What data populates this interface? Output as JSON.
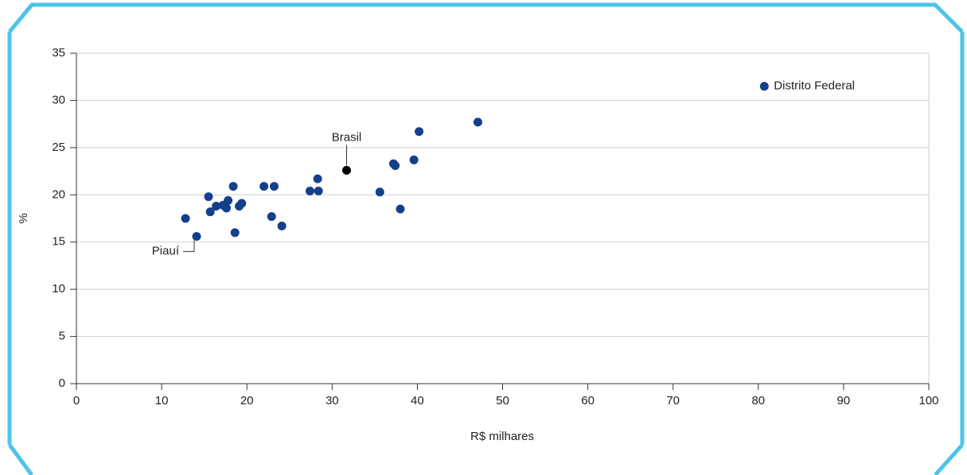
{
  "chart_data": {
    "type": "scatter",
    "x_label": "R$ milhares",
    "y_label": "%",
    "x": [
      12.8,
      14.1,
      15.5,
      15.7,
      16.4,
      17.2,
      17.6,
      17.8,
      18.4,
      18.6,
      19.1,
      19.4,
      22.0,
      22.9,
      23.2,
      24.1,
      27.4,
      28.3,
      28.4,
      31.7,
      35.6,
      37.2,
      37.4,
      38.0,
      39.6,
      40.2,
      47.1,
      80.7
    ],
    "values": [
      17.5,
      15.6,
      19.8,
      18.2,
      18.8,
      18.9,
      18.6,
      19.4,
      20.9,
      16.0,
      18.8,
      19.1,
      20.9,
      17.7,
      20.9,
      16.7,
      20.4,
      21.7,
      20.4,
      22.6,
      20.3,
      23.3,
      23.1,
      18.5,
      23.7,
      26.7,
      27.7,
      31.5
    ],
    "point_labels": [
      null,
      "Piauí",
      null,
      null,
      null,
      null,
      null,
      null,
      null,
      null,
      null,
      null,
      null,
      null,
      null,
      null,
      null,
      null,
      null,
      "Brasil",
      null,
      null,
      null,
      null,
      null,
      null,
      null,
      "Distrito Federal"
    ],
    "colors": [
      "#143f8c",
      "#143f8c",
      "#143f8c",
      "#143f8c",
      "#143f8c",
      "#143f8c",
      "#143f8c",
      "#143f8c",
      "#143f8c",
      "#143f8c",
      "#143f8c",
      "#143f8c",
      "#143f8c",
      "#143f8c",
      "#143f8c",
      "#143f8c",
      "#143f8c",
      "#143f8c",
      "#143f8c",
      "#000000",
      "#143f8c",
      "#143f8c",
      "#143f8c",
      "#143f8c",
      "#143f8c",
      "#143f8c",
      "#143f8c",
      "#143f8c"
    ],
    "xlim": [
      0,
      100
    ],
    "ylim": [
      0,
      35
    ],
    "xticks": [
      0,
      10,
      20,
      30,
      40,
      50,
      60,
      70,
      80,
      90,
      100
    ],
    "yticks": [
      0,
      5,
      10,
      15,
      20,
      25,
      30,
      35
    ],
    "grid": true
  }
}
